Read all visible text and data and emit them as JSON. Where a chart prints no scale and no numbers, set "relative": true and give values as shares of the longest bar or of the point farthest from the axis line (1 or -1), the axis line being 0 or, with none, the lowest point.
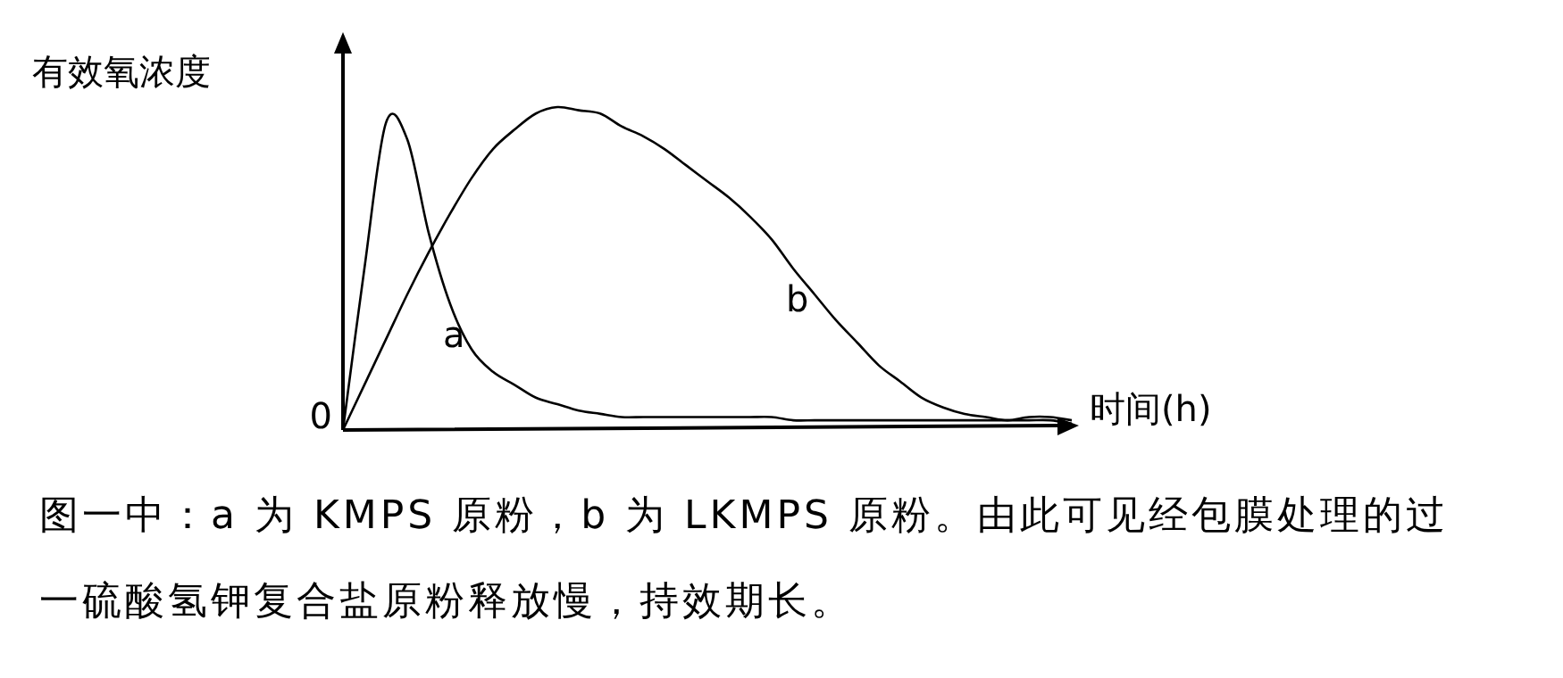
{
  "chart_data": {
    "type": "line",
    "relative": true,
    "ylabel": "有效氧浓度",
    "xlabel": "时间(h)",
    "categories": [
      null,
      null,
      null,
      null,
      null,
      null,
      null,
      null,
      null,
      null,
      null,
      null,
      null,
      null,
      null,
      null,
      null,
      null,
      null,
      null,
      null,
      null,
      null,
      null,
      null,
      null,
      null,
      null,
      null,
      null,
      null,
      null,
      null,
      null,
      null
    ],
    "series": [
      {
        "name": "a",
        "color": "#000000",
        "values": [
          0,
          0.5,
          0.95,
          0.9,
          0.61,
          0.39,
          0.25,
          0.18,
          0.14,
          0.1,
          0.08,
          0.06,
          0.05,
          0.04,
          0.04,
          0.04,
          0.04,
          0.04,
          0.04,
          0.04,
          0.04,
          0.03,
          0.03,
          0.03,
          0.03,
          0.03,
          0.03,
          0.03,
          0.03,
          0.03,
          0.03,
          0.03,
          0.03,
          0.03,
          0.02
        ]
      },
      {
        "name": "b",
        "color": "#000000",
        "values": [
          0,
          0.14,
          0.28,
          0.42,
          0.55,
          0.67,
          0.78,
          0.87,
          0.93,
          0.98,
          1,
          0.99,
          0.98,
          0.94,
          0.91,
          0.87,
          0.82,
          0.77,
          0.72,
          0.66,
          0.59,
          0.5,
          0.42,
          0.34,
          0.27,
          0.2,
          0.15,
          0.1,
          0.07,
          0.05,
          0.04,
          0.03,
          0.04,
          0.04,
          0.03
        ]
      }
    ],
    "annotations": [
      "0",
      "图一中：a 为 KMPS 原粉，b 为 LKMPS 原粉。由此可见经包膜处理的过一硫酸氢钾复合盐原粉释放慢，持效期长。"
    ]
  }
}
